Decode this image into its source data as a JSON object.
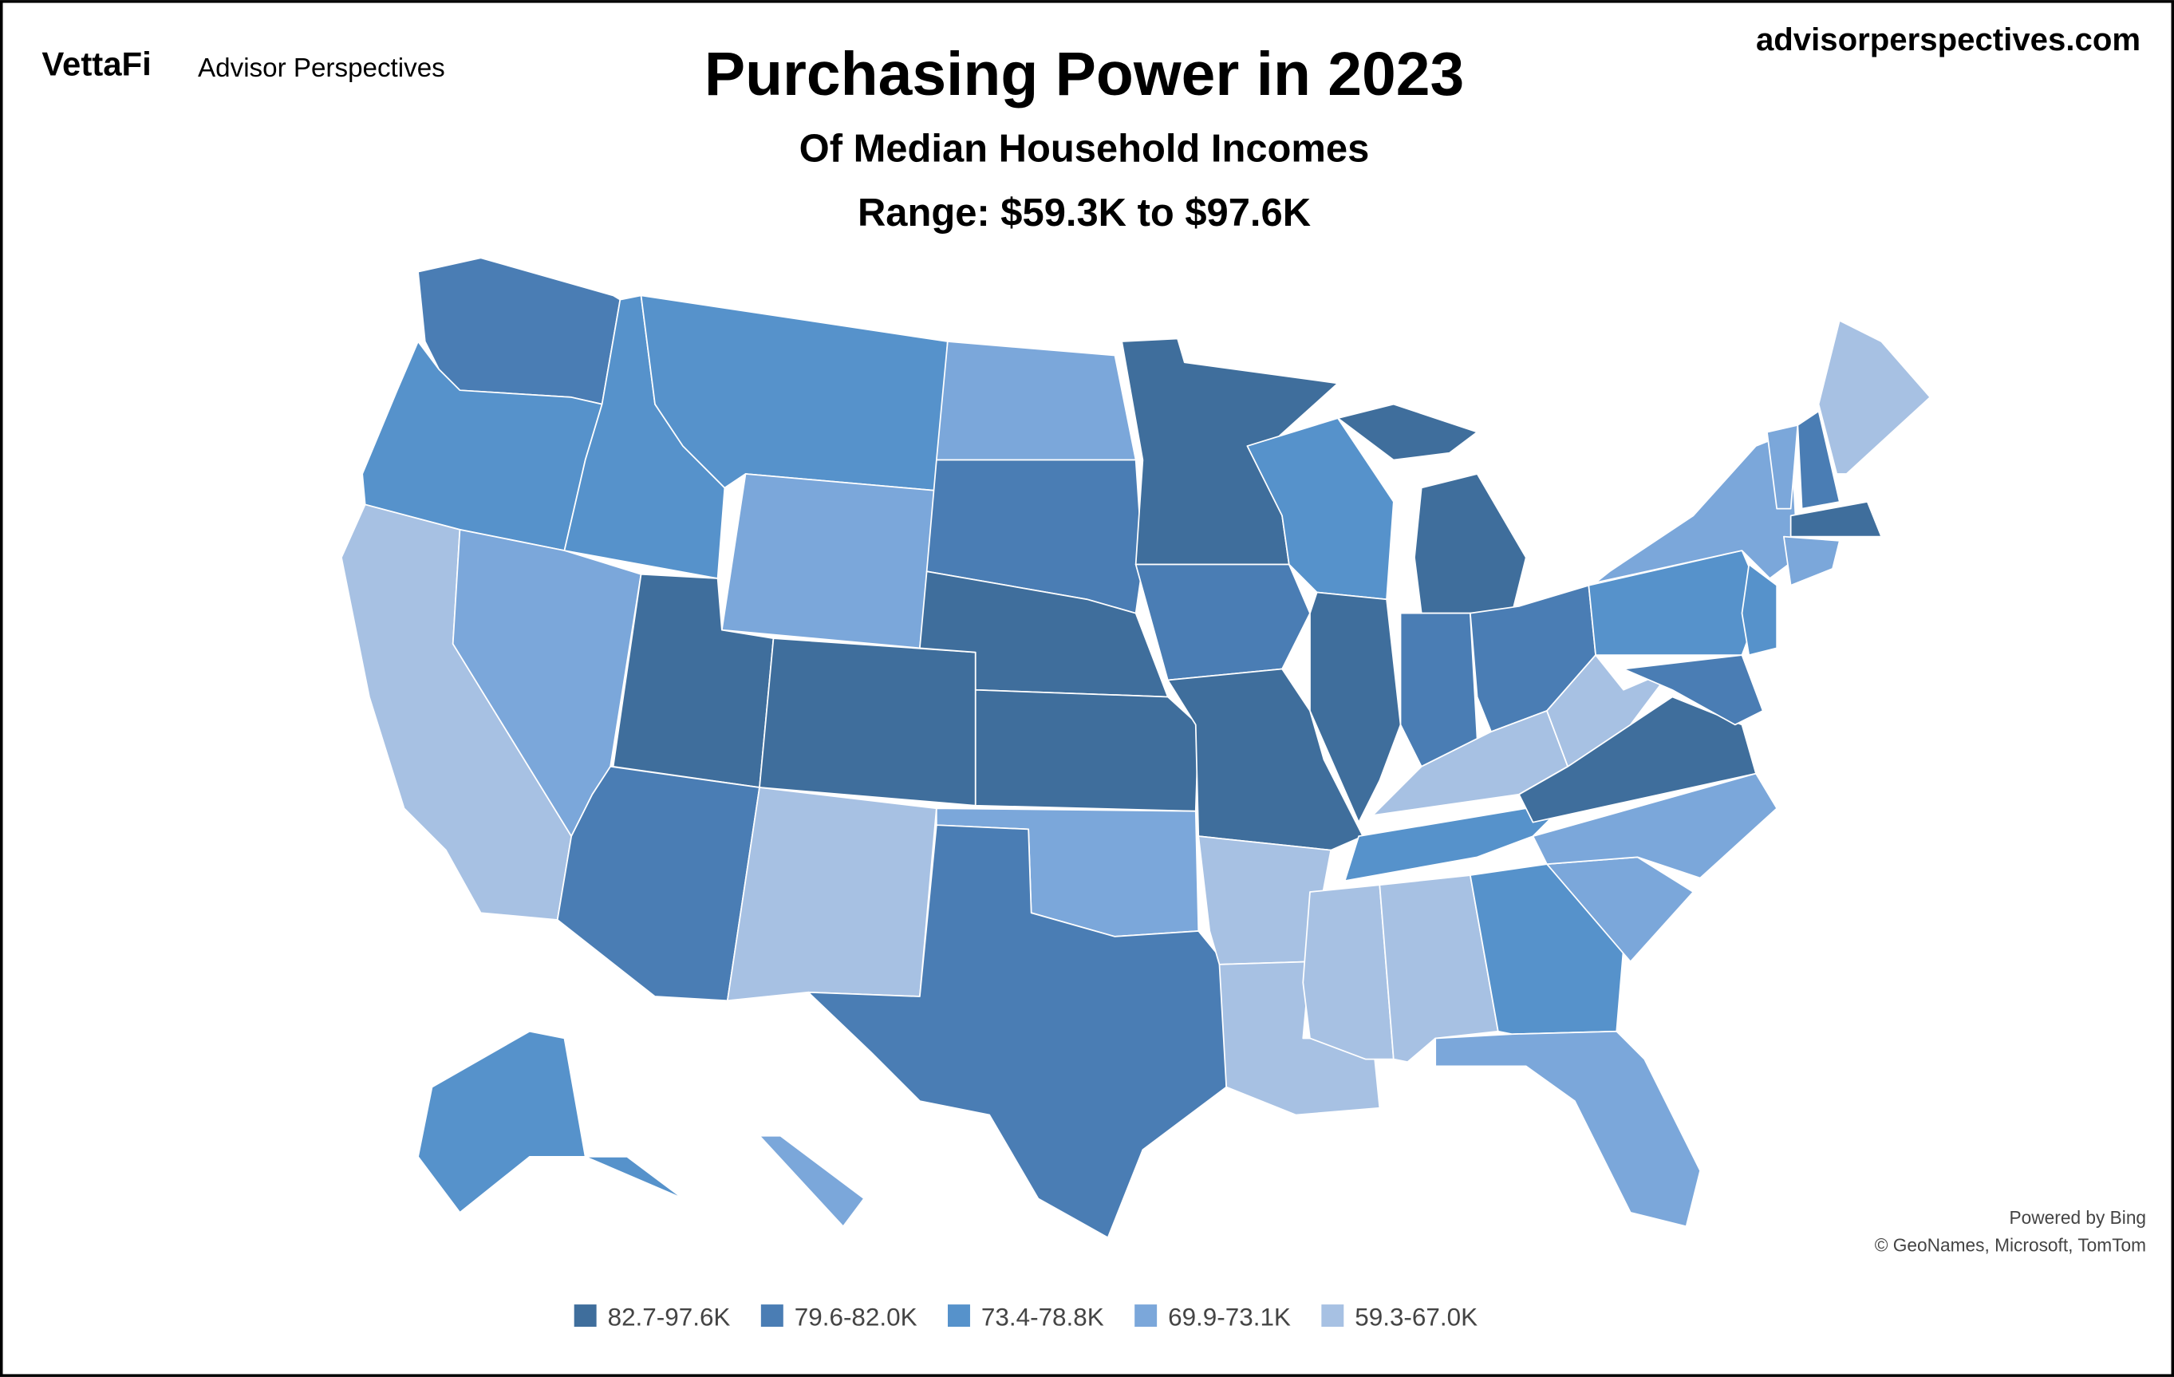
{
  "header": {
    "logo": "VettaFi",
    "brand": "Advisor Perspectives",
    "site": "advisorperspectives.com",
    "title": "Purchasing Power in 2023",
    "subtitle": "Of Median Household Incomes",
    "range": "Range: $59.3K to $97.6K"
  },
  "credits": [
    "Powered by Bing",
    "© GeoNames, Microsoft, TomTom"
  ],
  "legend": [
    {
      "label": "82.7-97.6K",
      "color": "#3f6e9c"
    },
    {
      "label": "79.6-82.0K",
      "color": "#4a7db4"
    },
    {
      "label": "73.4-78.8K",
      "color": "#5692cb"
    },
    {
      "label": "69.9-73.1K",
      "color": "#7ba7da"
    },
    {
      "label": "59.3-67.0K",
      "color": "#a7c1e3"
    }
  ],
  "regions": [
    {
      "legend": 1
    },
    {
      "legend": 2
    },
    {
      "legend": 4
    },
    {
      "legend": 3
    },
    {
      "legend": 2
    },
    {
      "legend": 2
    },
    {
      "legend": 3
    },
    {
      "legend": 0
    },
    {
      "legend": 0
    },
    {
      "legend": 1
    },
    {
      "legend": 4
    },
    {
      "legend": 3
    },
    {
      "legend": 1
    },
    {
      "legend": 0
    },
    {
      "legend": 0
    },
    {
      "legend": 3
    },
    {
      "legend": 1
    },
    {
      "legend": 0
    },
    {
      "legend": 1
    },
    {
      "legend": 0
    },
    {
      "legend": 4
    },
    {
      "legend": 4
    },
    {
      "legend": 2
    },
    {
      "legend": 0
    },
    {
      "legend": 0
    },
    {
      "legend": 0
    },
    {
      "legend": 1
    },
    {
      "legend": 1
    },
    {
      "legend": 4
    },
    {
      "legend": 2
    },
    {
      "legend": 4
    },
    {
      "legend": 4
    },
    {
      "legend": 2
    },
    {
      "legend": 3
    },
    {
      "legend": 3
    },
    {
      "legend": 3
    },
    {
      "legend": 0
    },
    {
      "legend": 4
    },
    {
      "legend": 2
    },
    {
      "legend": 3
    },
    {
      "legend": 2
    },
    {
      "legend": 1
    },
    {
      "legend": 3
    },
    {
      "legend": 1
    },
    {
      "legend": 4
    },
    {
      "legend": 0
    },
    {
      "legend": 3
    },
    {
      "legend": 2
    },
    {
      "legend": 3
    }
  ]
}
